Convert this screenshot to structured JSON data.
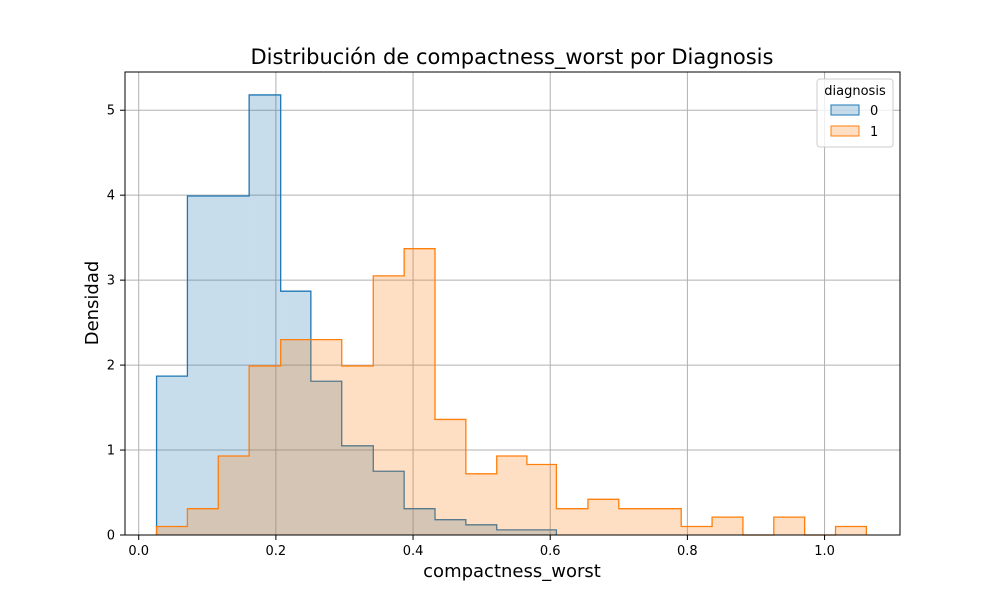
{
  "chart_data": {
    "type": "histogram",
    "title": "Distribución de compactness_worst por Diagnosis",
    "xlabel": "compactness_worst",
    "ylabel": "Densidad",
    "xlim": [
      -0.02,
      1.11
    ],
    "ylim": [
      0,
      5.45
    ],
    "grid": true,
    "x_ticks": [
      0.0,
      0.2,
      0.4,
      0.6,
      0.8,
      1.0
    ],
    "x_tick_labels": [
      "0.0",
      "0.2",
      "0.4",
      "0.6",
      "0.8",
      "1.0"
    ],
    "y_ticks": [
      0,
      1,
      2,
      3,
      4,
      5
    ],
    "y_tick_labels": [
      "0",
      "1",
      "2",
      "3",
      "4",
      "5"
    ],
    "legend": {
      "title": "diagnosis",
      "placement": "top-right",
      "entries": [
        "0",
        "1"
      ]
    },
    "series": [
      {
        "name": "0",
        "edge_color": "#1f77b4",
        "fill_color": "#1f77b4",
        "fill_opacity": 0.25,
        "bins": [
          {
            "x0": 0.026,
            "x1": 0.071,
            "density": 1.87
          },
          {
            "x0": 0.071,
            "x1": 0.161,
            "density": 3.99
          },
          {
            "x0": 0.161,
            "x1": 0.207,
            "density": 5.18
          },
          {
            "x0": 0.207,
            "x1": 0.251,
            "density": 2.87
          },
          {
            "x0": 0.251,
            "x1": 0.296,
            "density": 1.81
          },
          {
            "x0": 0.296,
            "x1": 0.342,
            "density": 1.05
          },
          {
            "x0": 0.342,
            "x1": 0.387,
            "density": 0.75
          },
          {
            "x0": 0.387,
            "x1": 0.432,
            "density": 0.31
          },
          {
            "x0": 0.432,
            "x1": 0.477,
            "density": 0.18
          },
          {
            "x0": 0.477,
            "x1": 0.522,
            "density": 0.12
          },
          {
            "x0": 0.522,
            "x1": 0.609,
            "density": 0.06
          }
        ]
      },
      {
        "name": "1",
        "edge_color": "#ff7f0e",
        "fill_color": "#ff7f0e",
        "fill_opacity": 0.25,
        "bins": [
          {
            "x0": 0.026,
            "x1": 0.071,
            "density": 0.1
          },
          {
            "x0": 0.071,
            "x1": 0.116,
            "density": 0.31
          },
          {
            "x0": 0.116,
            "x1": 0.161,
            "density": 0.93
          },
          {
            "x0": 0.161,
            "x1": 0.207,
            "density": 1.99
          },
          {
            "x0": 0.207,
            "x1": 0.296,
            "density": 2.3
          },
          {
            "x0": 0.296,
            "x1": 0.342,
            "density": 1.99
          },
          {
            "x0": 0.342,
            "x1": 0.387,
            "density": 3.05
          },
          {
            "x0": 0.387,
            "x1": 0.432,
            "density": 3.37
          },
          {
            "x0": 0.432,
            "x1": 0.477,
            "density": 1.36
          },
          {
            "x0": 0.477,
            "x1": 0.522,
            "density": 0.72
          },
          {
            "x0": 0.522,
            "x1": 0.566,
            "density": 0.93
          },
          {
            "x0": 0.566,
            "x1": 0.609,
            "density": 0.83
          },
          {
            "x0": 0.609,
            "x1": 0.655,
            "density": 0.31
          },
          {
            "x0": 0.655,
            "x1": 0.7,
            "density": 0.42
          },
          {
            "x0": 0.7,
            "x1": 0.791,
            "density": 0.31
          },
          {
            "x0": 0.791,
            "x1": 0.836,
            "density": 0.1
          },
          {
            "x0": 0.836,
            "x1": 0.881,
            "density": 0.21
          },
          {
            "x0": 0.881,
            "x1": 0.926,
            "density": 0.0
          },
          {
            "x0": 0.926,
            "x1": 0.971,
            "density": 0.21
          },
          {
            "x0": 0.971,
            "x1": 1.016,
            "density": 0.0
          },
          {
            "x0": 1.016,
            "x1": 1.061,
            "density": 0.1
          }
        ]
      }
    ]
  }
}
